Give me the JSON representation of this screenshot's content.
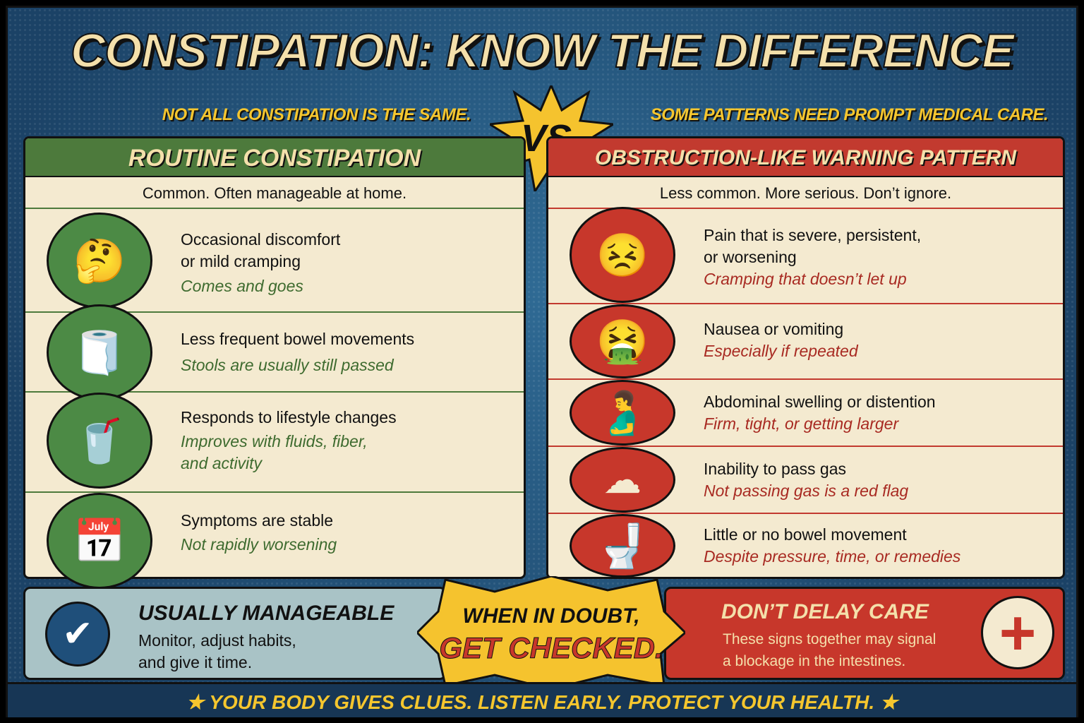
{
  "title": "CONSTIPATION: KNOW THE DIFFERENCE",
  "subtitle_left": "NOT ALL CONSTIPATION IS THE SAME.",
  "subtitle_right": "SOME PATTERNS NEED PROMPT MEDICAL CARE.",
  "vs": "VS.",
  "left": {
    "heading": "ROUTINE CONSTIPATION",
    "tagline": "Common. Often manageable at home.",
    "color": "#4d7a3c",
    "items": [
      {
        "icon": "thinking-man-icon",
        "line1": "Occasional discomfort",
        "line2": "or mild cramping",
        "note": "Comes and goes"
      },
      {
        "icon": "toilet-paper-icon",
        "line1": "Less frequent bowel movements",
        "note": "Stools are usually still passed"
      },
      {
        "icon": "drinking-water-icon",
        "line1": "Responds to lifestyle changes",
        "note": "Improves with fluids, fiber,",
        "note2": "and activity"
      },
      {
        "icon": "calendar-icon",
        "line1": "Symptoms are stable",
        "note": "Not rapidly worsening"
      }
    ]
  },
  "right": {
    "heading": "OBSTRUCTION-LIKE WARNING PATTERN",
    "tagline": "Less common. More serious. Don’t ignore.",
    "color": "#c23a2f",
    "items": [
      {
        "icon": "abdominal-pain-icon",
        "line1": "Pain that is severe, persistent,",
        "line2": "or worsening",
        "note": "Cramping that doesn’t let up"
      },
      {
        "icon": "vomiting-icon",
        "line1": "Nausea or vomiting",
        "note": "Especially if repeated"
      },
      {
        "icon": "swollen-abdomen-icon",
        "line1": "Abdominal swelling or distention",
        "note": "Firm, tight, or getting larger"
      },
      {
        "icon": "no-gas-icon",
        "line1": "Inability to pass gas",
        "note": "Not passing gas is a red flag"
      },
      {
        "icon": "blocked-toilet-icon",
        "line1": "Little or no bowel movement",
        "note": "Despite pressure, time, or remedies"
      }
    ]
  },
  "bottom": {
    "left": {
      "title": "USUALLY MANAGEABLE",
      "line1": "Monitor, adjust habits,",
      "line2": "and give it time.",
      "icon": "shield-check-icon"
    },
    "center": {
      "line1": "WHEN IN DOUBT,",
      "line2": "GET CHECKED."
    },
    "right": {
      "title": "DON’T DELAY CARE",
      "line1": "These signs together may signal",
      "line2": "a blockage in the intestines.",
      "icon": "medical-cross-icon"
    }
  },
  "footer": "YOUR BODY GIVES CLUES. LISTEN EARLY. PROTECT YOUR HEALTH."
}
